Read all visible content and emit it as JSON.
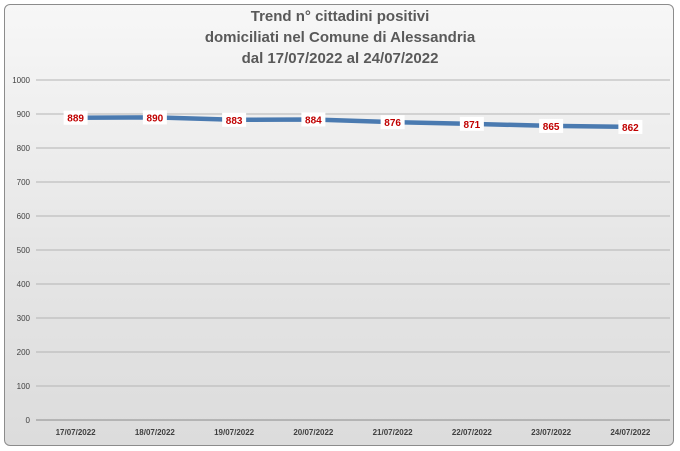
{
  "chart_data": {
    "type": "line",
    "title_lines": [
      "Trend n° cittadini positivi",
      "domiciliati nel Comune di Alessandria",
      "dal 17/07/2022 al 24/07/2022"
    ],
    "categories": [
      "17/07/2022",
      "18/07/2022",
      "19/07/2022",
      "20/07/2022",
      "21/07/2022",
      "22/07/2022",
      "23/07/2022",
      "24/07/2022"
    ],
    "series": [
      {
        "values": [
          889,
          890,
          883,
          884,
          876,
          871,
          865,
          862
        ]
      }
    ],
    "ylim": [
      0,
      1000
    ],
    "yticks": [
      0,
      100,
      200,
      300,
      400,
      500,
      600,
      700,
      800,
      900,
      1000
    ],
    "grid": true,
    "legend": "none",
    "colors": {
      "line": "#4a7ab0",
      "label_text": "#c00000",
      "title": "#595959"
    }
  }
}
